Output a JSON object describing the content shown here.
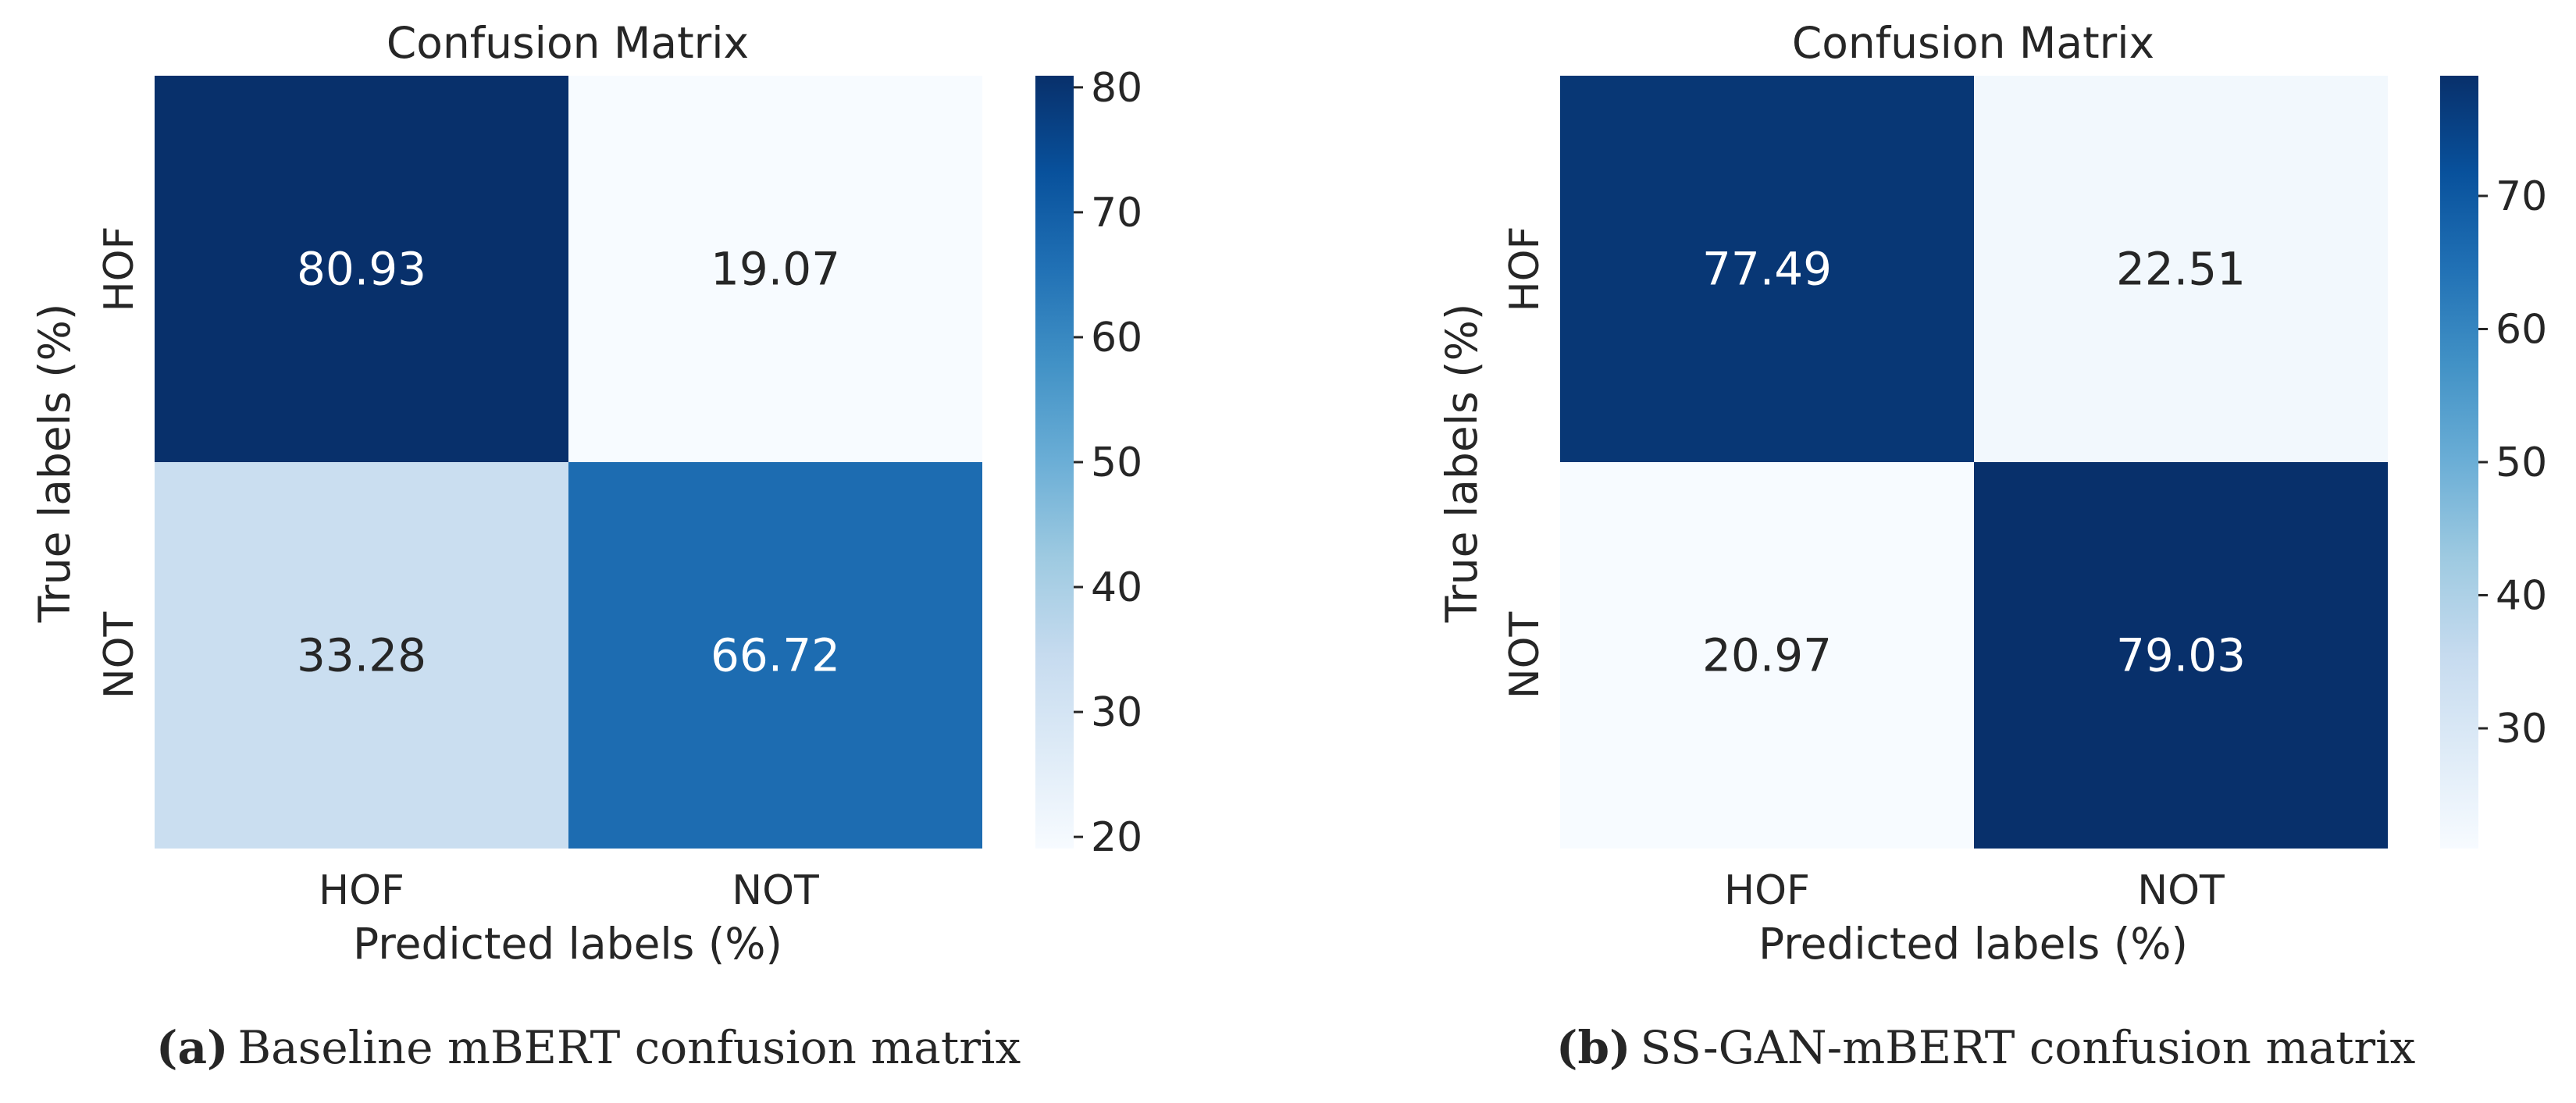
{
  "chart_data": [
    {
      "type": "heatmap",
      "title": "Confusion Matrix",
      "xlabel": "Predicted labels (%)",
      "ylabel": "True labels (%)",
      "x_categories": [
        "HOF",
        "NOT"
      ],
      "y_categories": [
        "HOF",
        "NOT"
      ],
      "values": [
        [
          80.93,
          19.07
        ],
        [
          33.28,
          66.72
        ]
      ],
      "value_labels": [
        [
          "80.93",
          "19.07"
        ],
        [
          "33.28",
          "66.72"
        ]
      ],
      "colormap": "Blues",
      "colorbar": {
        "range": [
          19.07,
          80.93
        ],
        "ticks": [
          20,
          30,
          40,
          50,
          60,
          70,
          80
        ]
      },
      "caption": {
        "letter": "(a)",
        "text": "Baseline mBERT confusion matrix"
      }
    },
    {
      "type": "heatmap",
      "title": "Confusion Matrix",
      "xlabel": "Predicted labels (%)",
      "ylabel": "True labels (%)",
      "x_categories": [
        "HOF",
        "NOT"
      ],
      "y_categories": [
        "HOF",
        "NOT"
      ],
      "values": [
        [
          77.49,
          22.51
        ],
        [
          20.97,
          79.03
        ]
      ],
      "value_labels": [
        [
          "77.49",
          "22.51"
        ],
        [
          "20.97",
          "79.03"
        ]
      ],
      "colormap": "Blues",
      "colorbar": {
        "range": [
          20.97,
          79.03
        ],
        "ticks": [
          30,
          40,
          50,
          60,
          70
        ]
      },
      "caption": {
        "letter": "(b)",
        "text": "SS-GAN-mBERT confusion matrix"
      }
    }
  ]
}
